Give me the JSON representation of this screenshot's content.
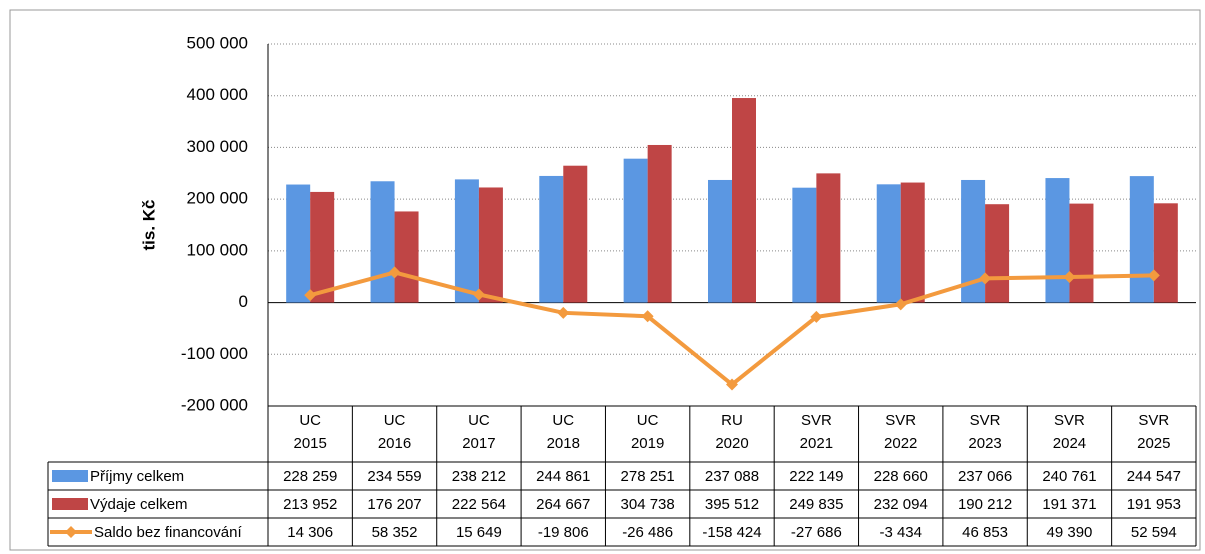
{
  "chart_data": {
    "type": "bar",
    "y_axis_label": "tis. Kč",
    "categories": [
      [
        "UC",
        "2015"
      ],
      [
        "UC",
        "2016"
      ],
      [
        "UC",
        "2017"
      ],
      [
        "UC",
        "2018"
      ],
      [
        "UC",
        "2019"
      ],
      [
        "RU",
        "2020"
      ],
      [
        "SVR",
        "2021"
      ],
      [
        "SVR",
        "2022"
      ],
      [
        "SVR",
        "2023"
      ],
      [
        "SVR",
        "2024"
      ],
      [
        "SVR",
        "2025"
      ]
    ],
    "series": [
      {
        "name": "Příjmy celkem",
        "type": "bar",
        "color": "#5b97e2",
        "values": [
          228259,
          234559,
          238212,
          244861,
          278251,
          237088,
          222149,
          228660,
          237066,
          240761,
          244547
        ],
        "value_labels": [
          "228 259",
          "234 559",
          "238 212",
          "244 861",
          "278 251",
          "237 088",
          "222 149",
          "228 660",
          "237 066",
          "240 761",
          "244 547"
        ]
      },
      {
        "name": "Výdaje celkem",
        "type": "bar",
        "color": "#bf4545",
        "values": [
          213952,
          176207,
          222564,
          264667,
          304738,
          395512,
          249835,
          232094,
          190212,
          191371,
          191953
        ],
        "value_labels": [
          "213 952",
          "176 207",
          "222 564",
          "264 667",
          "304 738",
          "395 512",
          "249 835",
          "232 094",
          "190 212",
          "191 371",
          "191 953"
        ]
      },
      {
        "name": "Saldo bez financování",
        "type": "line",
        "color": "#f39a3e",
        "values": [
          14306,
          58352,
          15649,
          -19806,
          -26486,
          -158424,
          -27686,
          -3434,
          46853,
          49390,
          52594
        ],
        "value_labels": [
          "14 306",
          "58 352",
          "15 649",
          "-19 806",
          "-26 486",
          "-158 424",
          "-27 686",
          "-3 434",
          "46 853",
          "49 390",
          "52 594"
        ]
      }
    ],
    "ylim": [
      -200000,
      500000
    ],
    "yticks": [
      {
        "value": -200000,
        "label": "-200 000"
      },
      {
        "value": -100000,
        "label": "-100 000"
      },
      0,
      {
        "value": 100000,
        "label": "100 000"
      },
      {
        "value": 200000,
        "label": "200 000"
      },
      {
        "value": 300000,
        "label": "300 000"
      },
      {
        "value": 400000,
        "label": "400 000"
      },
      {
        "value": 500000,
        "label": "500 000"
      }
    ],
    "grid": true
  }
}
